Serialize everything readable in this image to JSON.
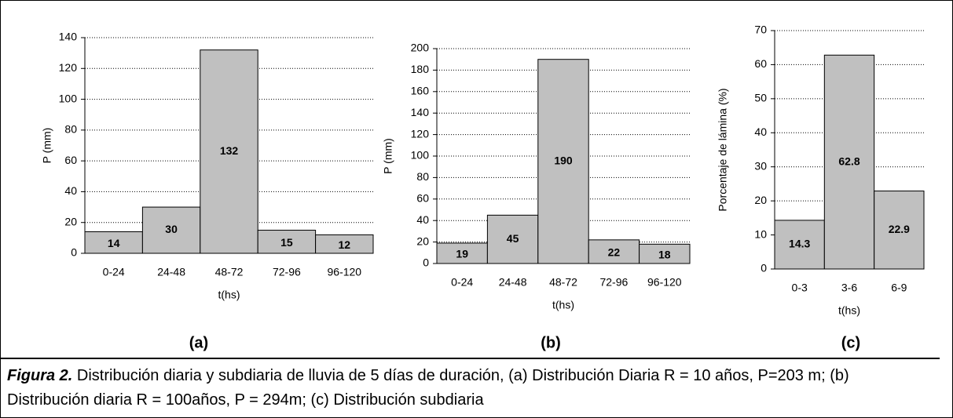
{
  "chart_data": [
    {
      "type": "bar",
      "panel": "(a)",
      "xlabel": "t(hs)",
      "ylabel": "P (mm)",
      "categories": [
        "0-24",
        "24-48",
        "48-72",
        "72-96",
        "96-120"
      ],
      "values": [
        14,
        30,
        132,
        15,
        12
      ],
      "color": "#c0c0c0",
      "ylim": [
        0,
        140
      ],
      "yticks": [
        0,
        20,
        40,
        60,
        80,
        100,
        120,
        140
      ],
      "grid": true
    },
    {
      "type": "bar",
      "panel": "(b)",
      "xlabel": "t(hs)",
      "ylabel": "P (mm)",
      "categories": [
        "0-24",
        "24-48",
        "48-72",
        "72-96",
        "96-120"
      ],
      "values": [
        19,
        45,
        190,
        22,
        18
      ],
      "color": "#c0c0c0",
      "ylim": [
        0,
        200
      ],
      "yticks": [
        0,
        20,
        40,
        60,
        80,
        100,
        120,
        140,
        160,
        180,
        200
      ],
      "grid": true
    },
    {
      "type": "bar",
      "panel": "(c)",
      "xlabel": "t(hs)",
      "ylabel": "Porcentaje de lámina (%)",
      "categories": [
        "0-3",
        "3-6",
        "6-9"
      ],
      "values": [
        14.3,
        62.8,
        22.9
      ],
      "color": "#c0c0c0",
      "ylim": [
        0,
        70
      ],
      "yticks": [
        0,
        10,
        20,
        30,
        40,
        50,
        60,
        70
      ],
      "grid": true
    }
  ],
  "caption": {
    "label": "Figura 2.",
    "text": "Distribución diaria y subdiaria de lluvia de 5 días de duración, (a) Distribución Diaria R = 10 años, P=203 m; (b) Distribución diaria R = 100años, P = 294m; (c) Distribución subdiaria"
  }
}
